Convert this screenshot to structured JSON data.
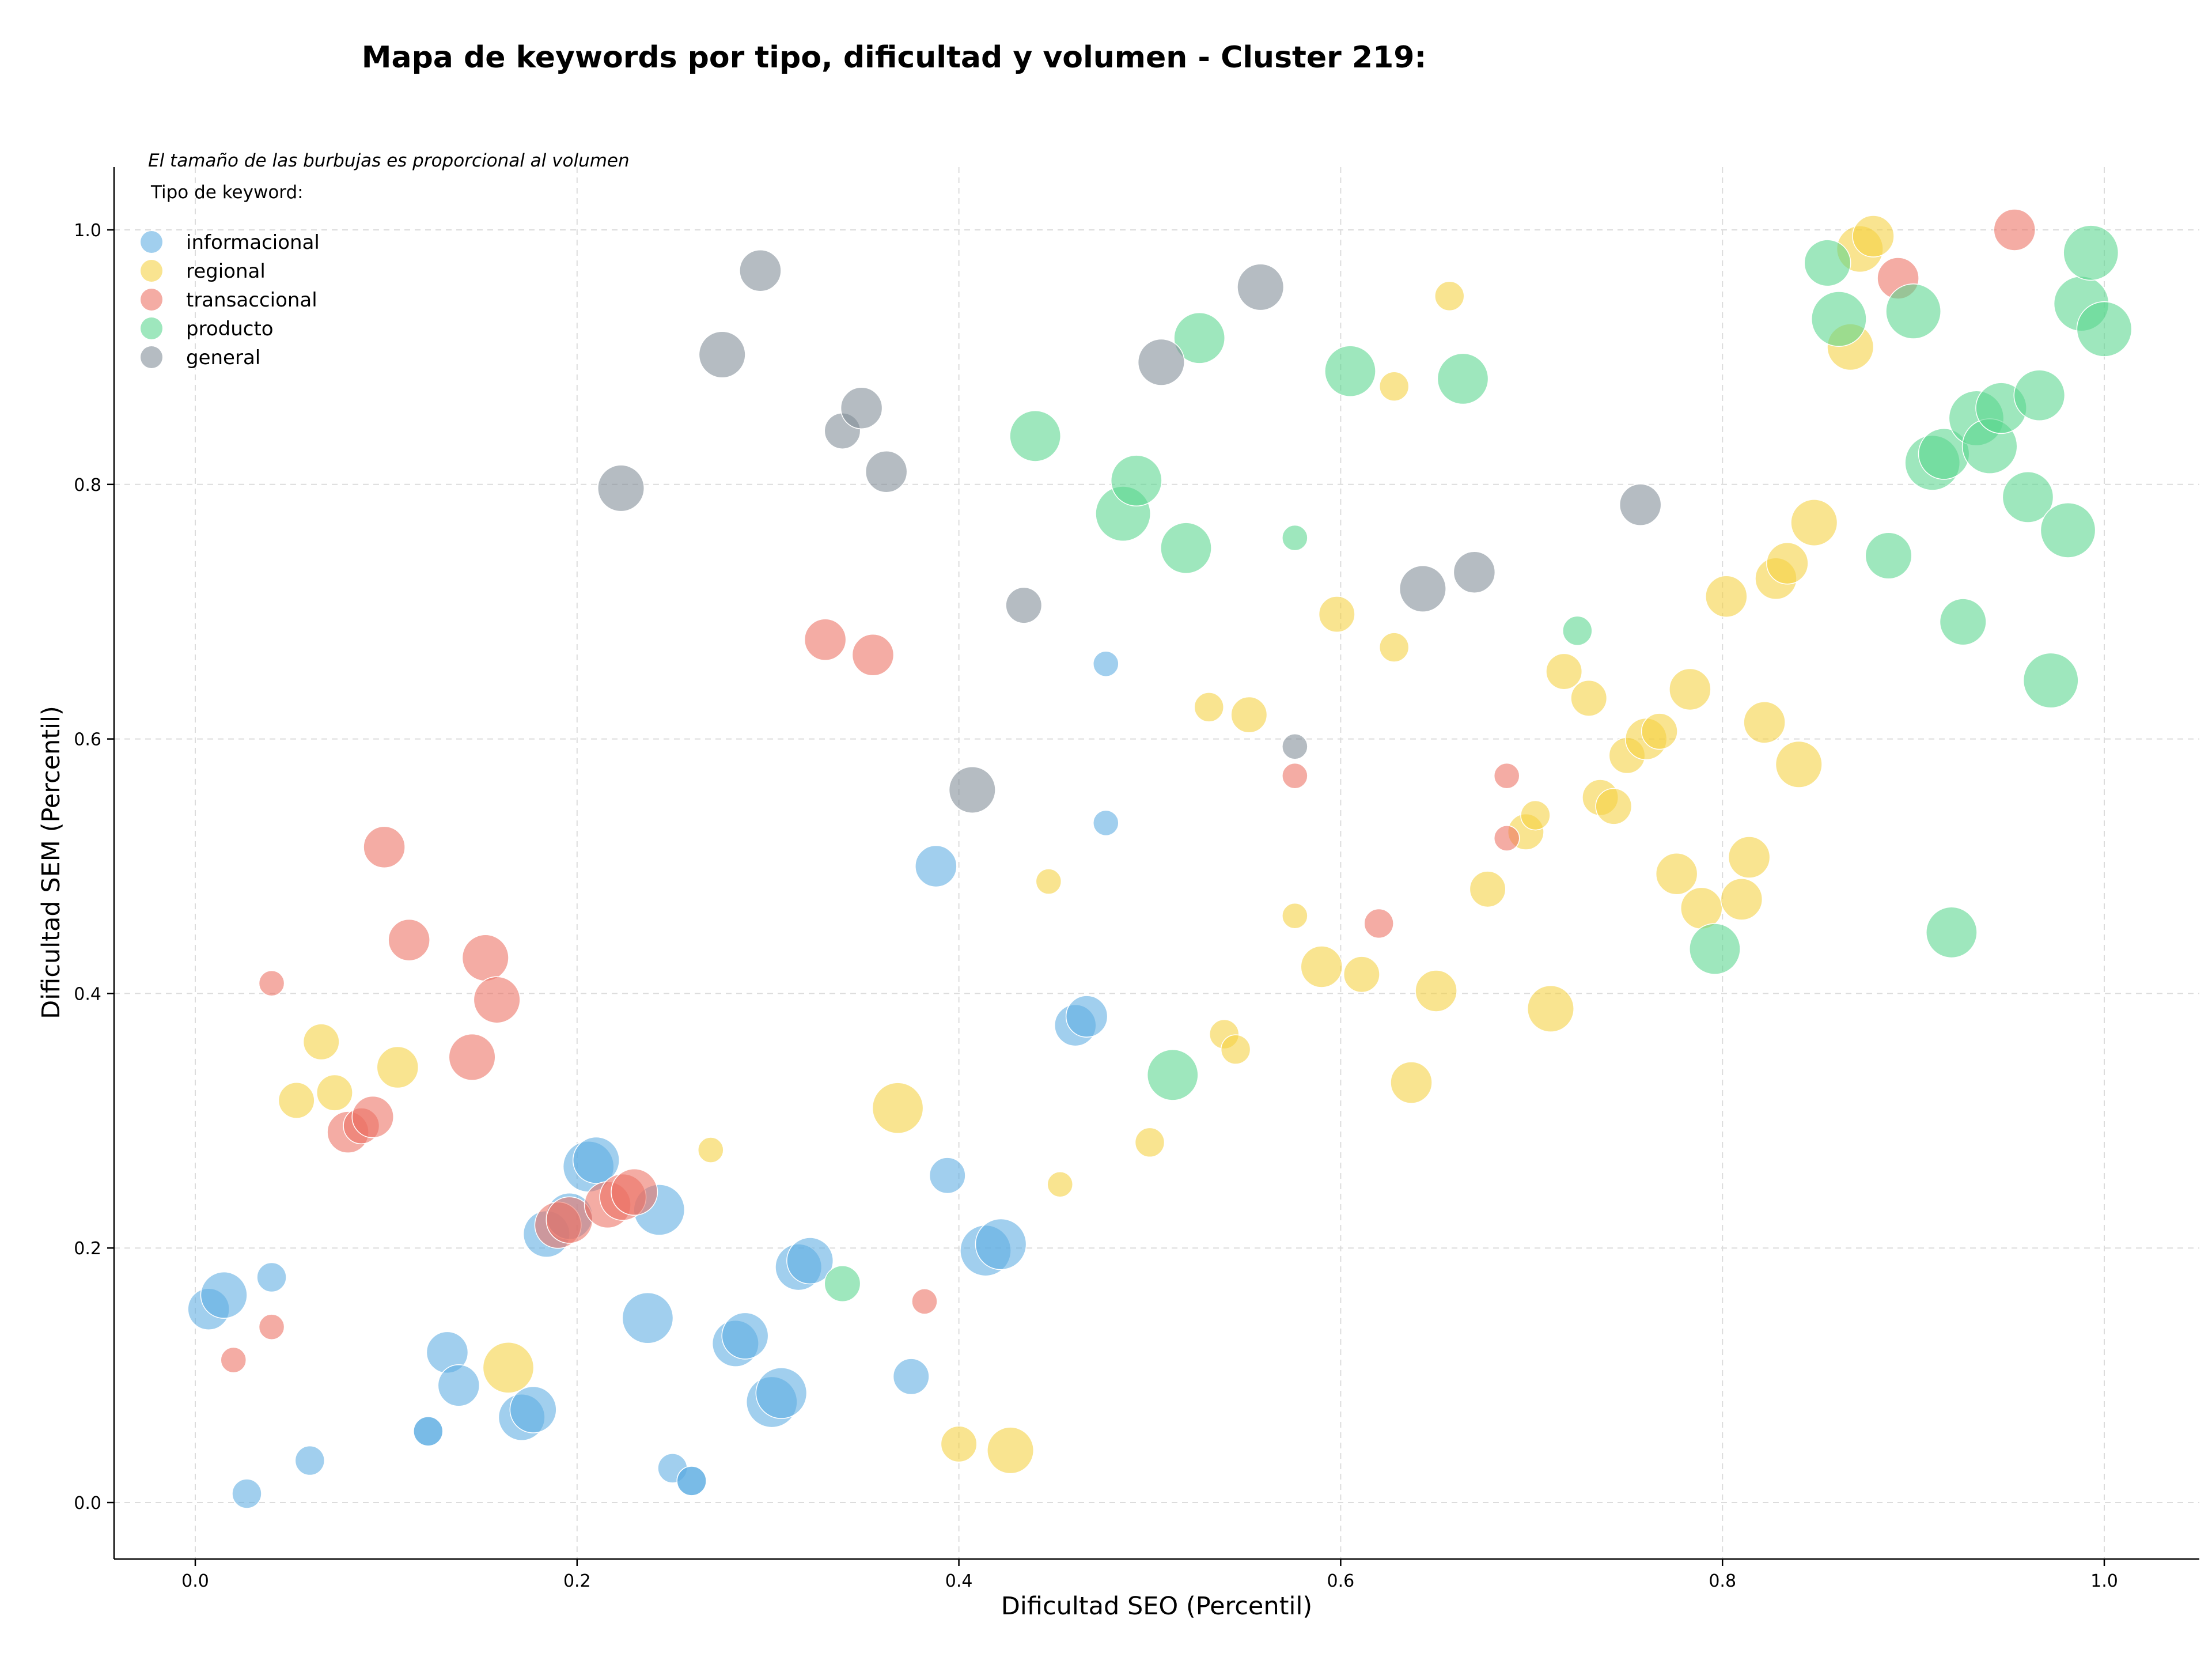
{
  "chart_data": {
    "type": "scatter",
    "title": "Mapa de keywords por tipo, dificultad y volumen - Cluster 219:",
    "xlabel": "Dificultad SEO (Percentil)",
    "ylabel": "Dificultad SEM (Percentil)",
    "xlim": [
      -0.04,
      1.05
    ],
    "ylim": [
      -0.04,
      1.05
    ],
    "xticks": [
      "0.0",
      "0.2",
      "0.4",
      "0.6",
      "0.8",
      "1.0"
    ],
    "yticks": [
      "0.0",
      "0.2",
      "0.4",
      "0.6",
      "0.8",
      "1.0"
    ],
    "grid": true,
    "legend": {
      "placement": "top-left",
      "note": "El tamaño de las burbujas es proporcional al volumen",
      "title": "Tipo de keyword:"
    },
    "series": [
      {
        "name": "informacional",
        "color": "#5dade2",
        "points": [
          [
            0.007,
            0.152,
            4
          ],
          [
            0.015,
            0.163,
            5
          ],
          [
            0.04,
            0.177,
            2
          ],
          [
            0.027,
            0.007,
            2
          ],
          [
            0.06,
            0.033,
            2
          ],
          [
            0.122,
            0.056,
            2
          ],
          [
            0.122,
            0.056,
            2
          ],
          [
            0.132,
            0.118,
            4
          ],
          [
            0.138,
            0.092,
            4
          ],
          [
            0.171,
            0.067,
            5
          ],
          [
            0.177,
            0.073,
            5
          ],
          [
            0.184,
            0.211,
            5
          ],
          [
            0.196,
            0.225,
            5
          ],
          [
            0.206,
            0.264,
            6
          ],
          [
            0.21,
            0.269,
            5
          ],
          [
            0.237,
            0.145,
            6
          ],
          [
            0.243,
            0.23,
            6
          ],
          [
            0.25,
            0.027,
            2
          ],
          [
            0.26,
            0.017,
            2
          ],
          [
            0.26,
            0.017,
            2
          ],
          [
            0.283,
            0.125,
            5
          ],
          [
            0.288,
            0.131,
            5
          ],
          [
            0.302,
            0.079,
            6
          ],
          [
            0.307,
            0.086,
            6
          ],
          [
            0.316,
            0.185,
            5
          ],
          [
            0.322,
            0.19,
            5
          ],
          [
            0.375,
            0.099,
            3
          ],
          [
            0.388,
            0.5,
            4
          ],
          [
            0.394,
            0.257,
            3
          ],
          [
            0.414,
            0.198,
            6
          ],
          [
            0.422,
            0.203,
            6
          ],
          [
            0.461,
            0.375,
            4
          ],
          [
            0.467,
            0.382,
            4
          ],
          [
            0.477,
            0.659,
            1.5
          ],
          [
            0.477,
            0.534,
            1.5
          ]
        ]
      },
      {
        "name": "regional",
        "color": "#f4d03f",
        "points": [
          [
            0.053,
            0.316,
            3
          ],
          [
            0.066,
            0.362,
            3
          ],
          [
            0.073,
            0.322,
            3
          ],
          [
            0.106,
            0.342,
            4
          ],
          [
            0.164,
            0.106,
            6
          ],
          [
            0.27,
            0.277,
            1.5
          ],
          [
            0.368,
            0.31,
            6
          ],
          [
            0.4,
            0.046,
            3
          ],
          [
            0.427,
            0.041,
            5
          ],
          [
            0.447,
            0.488,
            1.5
          ],
          [
            0.453,
            0.25,
            1.5
          ],
          [
            0.5,
            0.283,
            2
          ],
          [
            0.531,
            0.625,
            2
          ],
          [
            0.539,
            0.368,
            2
          ],
          [
            0.545,
            0.356,
            2
          ],
          [
            0.552,
            0.619,
            3
          ],
          [
            0.576,
            0.461,
            1.5
          ],
          [
            0.59,
            0.421,
            4
          ],
          [
            0.598,
            0.698,
            3
          ],
          [
            0.611,
            0.415,
            3
          ],
          [
            0.628,
            0.672,
            2
          ],
          [
            0.628,
            0.877,
            2
          ],
          [
            0.637,
            0.33,
            4
          ],
          [
            0.65,
            0.402,
            4
          ],
          [
            0.657,
            0.948,
            2
          ],
          [
            0.677,
            0.482,
            3
          ],
          [
            0.697,
            0.527,
            3
          ],
          [
            0.702,
            0.54,
            2
          ],
          [
            0.71,
            0.388,
            5
          ],
          [
            0.717,
            0.653,
            3
          ],
          [
            0.73,
            0.632,
            3
          ],
          [
            0.736,
            0.554,
            3
          ],
          [
            0.743,
            0.547,
            3
          ],
          [
            0.75,
            0.587,
            3
          ],
          [
            0.76,
            0.6,
            4
          ],
          [
            0.767,
            0.606,
            3
          ],
          [
            0.776,
            0.494,
            4
          ],
          [
            0.783,
            0.639,
            4
          ],
          [
            0.789,
            0.467,
            4
          ],
          [
            0.802,
            0.712,
            4
          ],
          [
            0.81,
            0.474,
            4
          ],
          [
            0.814,
            0.507,
            4
          ],
          [
            0.822,
            0.613,
            4
          ],
          [
            0.828,
            0.726,
            4
          ],
          [
            0.834,
            0.738,
            4
          ],
          [
            0.84,
            0.58,
            5
          ],
          [
            0.848,
            0.77,
            5
          ],
          [
            0.867,
            0.908,
            5
          ],
          [
            0.872,
            0.985,
            5
          ],
          [
            0.879,
            0.995,
            4
          ]
        ]
      },
      {
        "name": "transaccional",
        "color": "#ec7063",
        "points": [
          [
            0.02,
            0.112,
            1.5
          ],
          [
            0.04,
            0.138,
            1.5
          ],
          [
            0.04,
            0.408,
            1.5
          ],
          [
            0.08,
            0.291,
            4
          ],
          [
            0.087,
            0.296,
            3
          ],
          [
            0.093,
            0.303,
            4
          ],
          [
            0.099,
            0.515,
            4
          ],
          [
            0.112,
            0.442,
            4
          ],
          [
            0.145,
            0.35,
            5
          ],
          [
            0.152,
            0.428,
            5
          ],
          [
            0.158,
            0.395,
            5
          ],
          [
            0.19,
            0.218,
            5
          ],
          [
            0.196,
            0.222,
            5
          ],
          [
            0.216,
            0.234,
            5
          ],
          [
            0.224,
            0.24,
            5
          ],
          [
            0.23,
            0.244,
            5
          ],
          [
            0.33,
            0.678,
            4
          ],
          [
            0.355,
            0.666,
            4
          ],
          [
            0.382,
            0.158,
            1.5
          ],
          [
            0.576,
            0.571,
            1.5
          ],
          [
            0.62,
            0.455,
            2
          ],
          [
            0.687,
            0.571,
            1.5
          ],
          [
            0.687,
            0.522,
            1.5
          ],
          [
            0.892,
            0.962,
            4
          ],
          [
            0.953,
            1.0,
            4
          ]
        ]
      },
      {
        "name": "producto",
        "color": "#58d68d",
        "points": [
          [
            0.339,
            0.172,
            3
          ],
          [
            0.44,
            0.838,
            6
          ],
          [
            0.486,
            0.777,
            7
          ],
          [
            0.493,
            0.803,
            6
          ],
          [
            0.512,
            0.336,
            6
          ],
          [
            0.519,
            0.75,
            6
          ],
          [
            0.526,
            0.915,
            6
          ],
          [
            0.576,
            0.758,
            1.5
          ],
          [
            0.605,
            0.889,
            6
          ],
          [
            0.664,
            0.883,
            6
          ],
          [
            0.724,
            0.685,
            2
          ],
          [
            0.796,
            0.435,
            6
          ],
          [
            0.855,
            0.974,
            5
          ],
          [
            0.861,
            0.93,
            7
          ],
          [
            0.887,
            0.744,
            5
          ],
          [
            0.9,
            0.936,
            7
          ],
          [
            0.91,
            0.817,
            7
          ],
          [
            0.916,
            0.824,
            6
          ],
          [
            0.92,
            0.448,
            6
          ],
          [
            0.926,
            0.692,
            5
          ],
          [
            0.933,
            0.852,
            7
          ],
          [
            0.94,
            0.83,
            7
          ],
          [
            0.946,
            0.86,
            6
          ],
          [
            0.96,
            0.79,
            6
          ],
          [
            0.966,
            0.87,
            6
          ],
          [
            0.972,
            0.646,
            7
          ],
          [
            0.981,
            0.764,
            7
          ],
          [
            0.988,
            0.942,
            7
          ],
          [
            0.993,
            0.982,
            7
          ],
          [
            1.0,
            0.922,
            7
          ]
        ]
      },
      {
        "name": "general",
        "color": "#808b96",
        "points": [
          [
            0.223,
            0.797,
            5
          ],
          [
            0.276,
            0.902,
            5
          ],
          [
            0.296,
            0.968,
            4
          ],
          [
            0.339,
            0.842,
            3
          ],
          [
            0.349,
            0.86,
            4
          ],
          [
            0.362,
            0.81,
            4
          ],
          [
            0.407,
            0.56,
            5
          ],
          [
            0.434,
            0.705,
            3
          ],
          [
            0.506,
            0.896,
            5
          ],
          [
            0.558,
            0.955,
            5
          ],
          [
            0.576,
            0.594,
            1.5
          ],
          [
            0.643,
            0.718,
            5
          ],
          [
            0.67,
            0.731,
            4
          ],
          [
            0.757,
            0.784,
            4
          ]
        ]
      }
    ]
  }
}
